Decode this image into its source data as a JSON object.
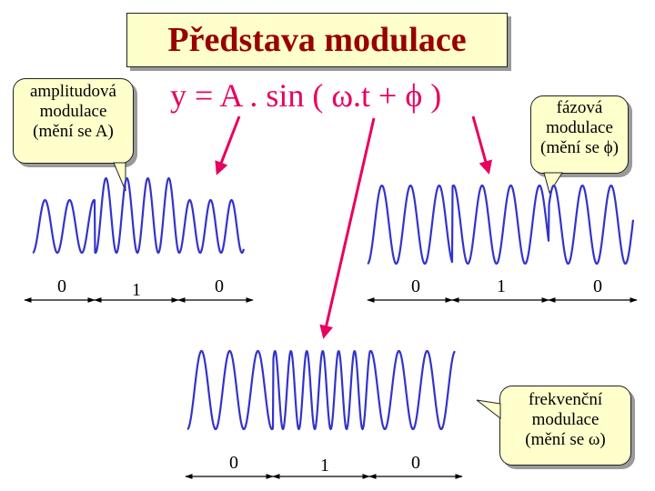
{
  "title": "Představa modulace",
  "formula": "y = A . sin ( ω.t + ϕ )",
  "callouts": {
    "am": [
      "amplitudová",
      "modulace",
      "(mění se A)"
    ],
    "pm": [
      "fázová",
      "modulace",
      "(mění se ϕ)"
    ],
    "fm": [
      "frekvenční",
      "modulace",
      "(mění se ω)"
    ]
  },
  "bits": {
    "am": [
      "0",
      "1",
      "0"
    ],
    "pm": [
      "0",
      "1",
      "0"
    ],
    "fm": [
      "0",
      "1",
      "0"
    ]
  },
  "colors": {
    "title_text": "#990000",
    "formula_text": "#e8005f",
    "arrow": "#e8005f",
    "wave": "#3333cc",
    "callout_fill": "#ffffcc"
  }
}
